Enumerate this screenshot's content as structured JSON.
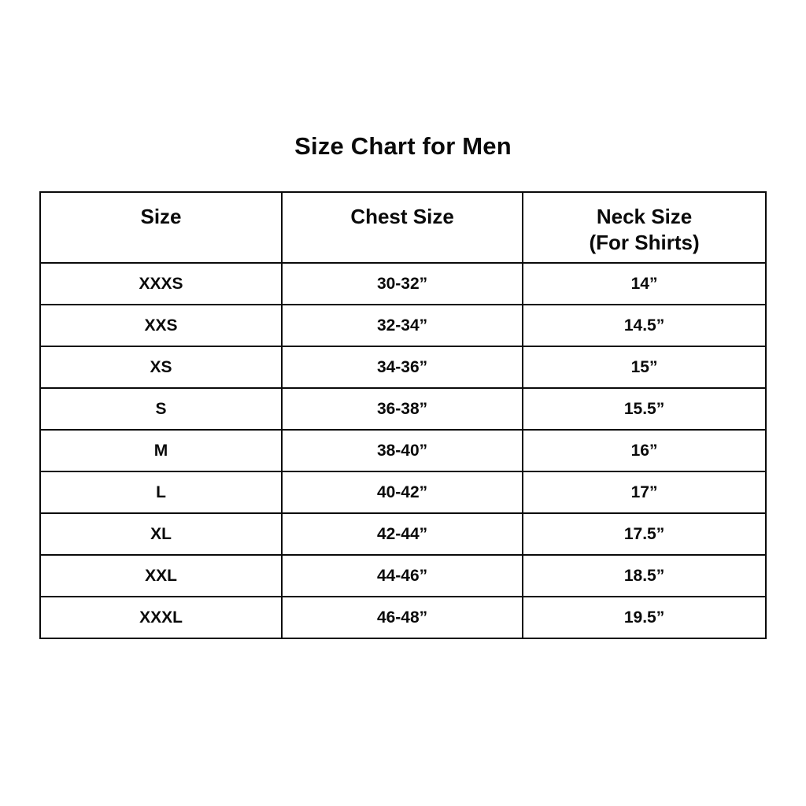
{
  "page": {
    "title": "Size Chart for Men"
  },
  "chart_data": {
    "type": "table",
    "title": "Size Chart for Men",
    "columns": [
      "Size",
      "Chest Size",
      "Neck Size (For Shirts)"
    ],
    "rows": [
      {
        "size": "XXXS",
        "chest": "30-32”",
        "neck": "14”"
      },
      {
        "size": "XXS",
        "chest": "32-34”",
        "neck": "14.5”"
      },
      {
        "size": "XS",
        "chest": "34-36”",
        "neck": "15”"
      },
      {
        "size": "S",
        "chest": "36-38”",
        "neck": "15.5”"
      },
      {
        "size": "M",
        "chest": "38-40”",
        "neck": "16”"
      },
      {
        "size": "L",
        "chest": "40-42”",
        "neck": "17”"
      },
      {
        "size": "XL",
        "chest": "42-44”",
        "neck": "17.5”"
      },
      {
        "size": "XXL",
        "chest": "44-46”",
        "neck": "18.5”"
      },
      {
        "size": "XXXL",
        "chest": "46-48”",
        "neck": "19.5”"
      }
    ]
  },
  "table": {
    "header": {
      "size": "Size",
      "chest": "Chest Size",
      "neck_line1": "Neck Size",
      "neck_line2": "(For Shirts)"
    },
    "border_color": "#0a0a0a",
    "background_color": "#ffffff"
  }
}
